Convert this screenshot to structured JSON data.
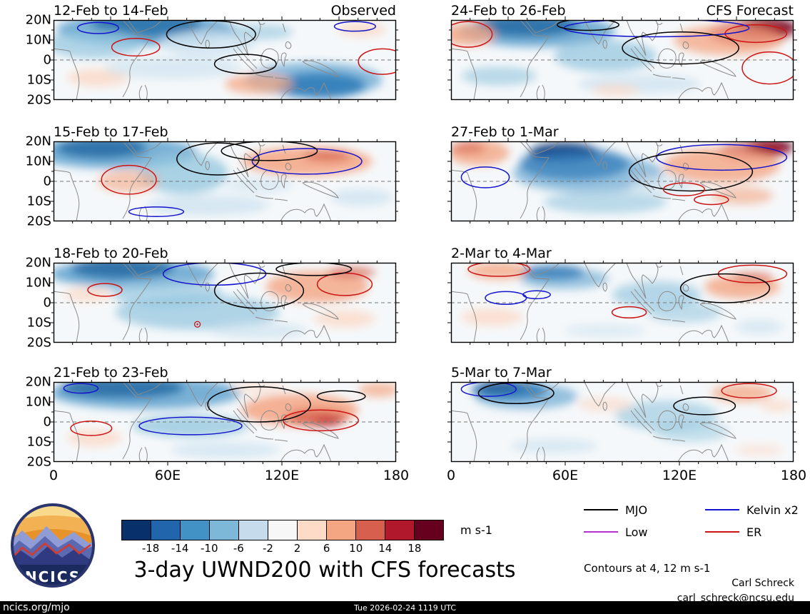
{
  "logo_text": "NCICS",
  "footer": {
    "site": "ncics.org/mjo",
    "timestamp": "Tue 2026-02-24 1119 UTC",
    "credit_name": "Carl Schreck",
    "credit_email": "carl_schreck@ncsu.edu"
  },
  "chart_data": {
    "type": "heatmap",
    "subtype": "filled-contour longitude-latitude map grid, 2 columns (Observed | CFS Forecast) x 4 rows of 3-day means",
    "title": "3-day UWND200 with CFS forecasts",
    "units_label": "m s-1",
    "contour_note": "Contours at 4, 12 m s-1",
    "lon_range_deg": [
      0,
      180
    ],
    "lat_range_deg": [
      -20,
      20
    ],
    "lon_ticks": [
      "0",
      "60E",
      "120E",
      "180"
    ],
    "lat_ticks": [
      "20N",
      "10N",
      "0",
      "10S",
      "20S"
    ],
    "columns": [
      "Observed",
      "CFS Forecast"
    ],
    "colorbar_tick_labels": [
      "-18",
      "-14",
      "-10",
      "-6",
      "-2",
      "2",
      "6",
      "10",
      "14",
      "18"
    ],
    "colorbar_colors": [
      "#08306b",
      "#2166ac",
      "#4292c6",
      "#7db8d8",
      "#c6dcec",
      "#f7f7f7",
      "#fddbc7",
      "#f4a582",
      "#d6604d",
      "#b2182b",
      "#67001f"
    ],
    "legend": [
      {
        "label": "MJO",
        "color": "#000000"
      },
      {
        "label": "Kelvin x2",
        "color": "#1414cc"
      },
      {
        "label": "Low",
        "color": "#b233cc"
      },
      {
        "label": "ER",
        "color": "#cc1414"
      }
    ],
    "palette": {
      "nb": "#08306b",
      "db": "#2166ac",
      "mb": "#4292c6",
      "lb": "#92c5de",
      "vb": "#cfe3f0",
      "lo": "#fbdccb",
      "mo": "#f4a582",
      "dk": "#d6604d",
      "dr": "#b2182b",
      "mr": "#67001f"
    },
    "contour_colors": {
      "mjo": "#000000",
      "kelvin": "#1414cc",
      "er": "#cc1414",
      "low": "#b233cc"
    },
    "panels": [
      {
        "title": "12-Feb to 14-Feb",
        "corner": "Observed",
        "column": "Observed",
        "blobs": [
          [
            27,
            6,
            16,
            14,
            "nb",
            1
          ],
          [
            27,
            12,
            26,
            20,
            "mb",
            0.75
          ],
          [
            12,
            30,
            14,
            18,
            "lb",
            0.7
          ],
          [
            45,
            30,
            14,
            16,
            "vb",
            0.8
          ],
          [
            60,
            15,
            10,
            10,
            "lb",
            0.6
          ],
          [
            78,
            82,
            13,
            16,
            "db",
            0.95
          ],
          [
            76,
            75,
            20,
            22,
            "mb",
            0.6
          ],
          [
            60,
            80,
            10,
            12,
            "mo",
            0.75
          ],
          [
            13,
            72,
            9,
            11,
            "lo",
            0.9
          ],
          [
            90,
            12,
            7,
            9,
            "lo",
            0.9
          ],
          [
            35,
            60,
            20,
            14,
            "vb",
            0.7
          ]
        ],
        "contours": [
          [
            24,
            34,
            7,
            11,
            "er"
          ],
          [
            96,
            52,
            7,
            16,
            "er"
          ],
          [
            88,
            8,
            6,
            6,
            "kelvin"
          ],
          [
            13,
            10,
            6,
            7,
            "kelvin"
          ],
          [
            46,
            18,
            13,
            17,
            "mjo"
          ],
          [
            56,
            55,
            9,
            12,
            "mjo"
          ]
        ]
      },
      {
        "title": "15-Feb to 17-Feb",
        "column": "Observed",
        "blobs": [
          [
            14,
            8,
            13,
            13,
            "nb",
            1
          ],
          [
            18,
            14,
            24,
            20,
            "mb",
            0.7
          ],
          [
            38,
            40,
            13,
            26,
            "lb",
            0.75
          ],
          [
            45,
            80,
            18,
            13,
            "vb",
            0.8
          ],
          [
            74,
            25,
            19,
            18,
            "mo",
            0.85
          ],
          [
            80,
            18,
            7,
            7,
            "dk",
            0.7
          ],
          [
            22,
            50,
            9,
            14,
            "mo",
            0.6
          ],
          [
            90,
            70,
            9,
            11,
            "vb",
            0.8
          ],
          [
            60,
            55,
            10,
            10,
            "vb",
            0.6
          ]
        ],
        "contours": [
          [
            22,
            48,
            8,
            18,
            "er"
          ],
          [
            74,
            25,
            16,
            16,
            "kelvin"
          ],
          [
            30,
            88,
            8,
            6,
            "kelvin"
          ],
          [
            48,
            22,
            12,
            20,
            "mjo"
          ],
          [
            63,
            12,
            14,
            12,
            "mjo"
          ]
        ]
      },
      {
        "title": "18-Feb to 20-Feb",
        "column": "Observed",
        "blobs": [
          [
            20,
            7,
            15,
            13,
            "nb",
            1
          ],
          [
            23,
            14,
            24,
            18,
            "mb",
            0.7
          ],
          [
            42,
            62,
            24,
            22,
            "lb",
            0.7
          ],
          [
            33,
            38,
            16,
            18,
            "lb",
            0.65
          ],
          [
            77,
            30,
            15,
            20,
            "mo",
            0.8
          ],
          [
            87,
            12,
            7,
            7,
            "dk",
            0.7
          ],
          [
            85,
            70,
            9,
            11,
            "lo",
            0.85
          ],
          [
            10,
            40,
            7,
            9,
            "lo",
            0.8
          ],
          [
            60,
            85,
            14,
            10,
            "vb",
            0.7
          ]
        ],
        "contours": [
          [
            47,
            14,
            15,
            14,
            "kelvin"
          ],
          [
            15,
            34,
            5,
            8,
            "er"
          ],
          [
            85,
            27,
            8,
            14,
            "er"
          ],
          [
            60,
            35,
            13,
            22,
            "mjo"
          ],
          [
            76,
            8,
            11,
            8,
            "mjo"
          ]
        ],
        "marker": [
          42,
          77
        ]
      },
      {
        "title": "21-Feb to 23-Feb",
        "column": "Observed",
        "blobs": [
          [
            20,
            7,
            18,
            13,
            "nb",
            1
          ],
          [
            27,
            14,
            28,
            20,
            "mb",
            0.7
          ],
          [
            40,
            55,
            17,
            14,
            "lb",
            0.75
          ],
          [
            72,
            35,
            17,
            20,
            "mo",
            0.85
          ],
          [
            77,
            45,
            9,
            11,
            "dk",
            0.8
          ],
          [
            80,
            50,
            4,
            5,
            "dr",
            0.7
          ],
          [
            50,
            85,
            16,
            10,
            "vb",
            0.75
          ],
          [
            95,
            10,
            6,
            9,
            "mo",
            0.7
          ],
          [
            12,
            70,
            8,
            11,
            "lo",
            0.85
          ],
          [
            60,
            8,
            8,
            8,
            "lo",
            0.6
          ]
        ],
        "contours": [
          [
            40,
            55,
            15,
            11,
            "kelvin"
          ],
          [
            8,
            8,
            5,
            6,
            "kelvin"
          ],
          [
            78,
            48,
            11,
            13,
            "er"
          ],
          [
            11,
            58,
            6,
            9,
            "er"
          ],
          [
            60,
            28,
            15,
            22,
            "mjo"
          ],
          [
            84,
            18,
            7,
            7,
            "mjo"
          ]
        ]
      },
      {
        "title": "24-Feb to 26-Feb",
        "corner": "CFS Forecast",
        "column": "CFS Forecast",
        "blobs": [
          [
            22,
            7,
            15,
            14,
            "nb",
            1
          ],
          [
            25,
            14,
            23,
            20,
            "mb",
            0.7
          ],
          [
            92,
            10,
            9,
            12,
            "mr",
            0.9
          ],
          [
            87,
            16,
            12,
            15,
            "dr",
            0.7
          ],
          [
            81,
            25,
            16,
            19,
            "mo",
            0.75
          ],
          [
            5,
            18,
            8,
            14,
            "mo",
            0.8
          ],
          [
            45,
            45,
            15,
            20,
            "lb",
            0.7
          ],
          [
            55,
            80,
            18,
            12,
            "vb",
            0.8
          ],
          [
            14,
            70,
            11,
            12,
            "lb",
            0.6
          ],
          [
            48,
            88,
            7,
            7,
            "lo",
            0.8
          ]
        ],
        "contours": [
          [
            5,
            18,
            7,
            16,
            "er"
          ],
          [
            89,
            17,
            9,
            11,
            "er"
          ],
          [
            93,
            60,
            8,
            20,
            "er"
          ],
          [
            60,
            10,
            27,
            11,
            "kelvin"
          ],
          [
            67,
            35,
            17,
            20,
            "mjo"
          ],
          [
            40,
            6,
            9,
            7,
            "mjo"
          ]
        ]
      },
      {
        "title": "27-Feb to 1-Mar",
        "column": "CFS Forecast",
        "blobs": [
          [
            8,
            14,
            9,
            16,
            "mo",
            0.8
          ],
          [
            5,
            8,
            5,
            7,
            "dk",
            0.6
          ],
          [
            33,
            14,
            10,
            12,
            "nb",
            0.95
          ],
          [
            36,
            28,
            16,
            20,
            "db",
            0.75
          ],
          [
            40,
            40,
            22,
            24,
            "mb",
            0.55
          ],
          [
            45,
            76,
            18,
            14,
            "lb",
            0.6
          ],
          [
            93,
            7,
            7,
            9,
            "mr",
            0.9
          ],
          [
            88,
            12,
            10,
            11,
            "dr",
            0.7
          ],
          [
            79,
            30,
            17,
            22,
            "mo",
            0.8
          ],
          [
            85,
            68,
            9,
            11,
            "mo",
            0.6
          ],
          [
            62,
            55,
            9,
            11,
            "vb",
            0.7
          ]
        ],
        "contours": [
          [
            10,
            45,
            7,
            13,
            "kelvin"
          ],
          [
            79,
            20,
            19,
            16,
            "kelvin"
          ],
          [
            70,
            38,
            18,
            24,
            "mjo"
          ],
          [
            68,
            60,
            6,
            8,
            "er"
          ],
          [
            76,
            73,
            5,
            6,
            "er"
          ]
        ]
      },
      {
        "title": "2-Mar to 4-Mar",
        "column": "CFS Forecast",
        "blobs": [
          [
            14,
            10,
            9,
            11,
            "mo",
            0.75
          ],
          [
            30,
            12,
            9,
            9,
            "db",
            0.8
          ],
          [
            33,
            20,
            13,
            13,
            "mb",
            0.5
          ],
          [
            60,
            40,
            13,
            17,
            "lb",
            0.65
          ],
          [
            68,
            62,
            11,
            13,
            "lb",
            0.55
          ],
          [
            85,
            30,
            11,
            15,
            "mo",
            0.8
          ],
          [
            88,
            18,
            6,
            6,
            "dk",
            0.6
          ],
          [
            12,
            68,
            9,
            11,
            "lo",
            0.85
          ],
          [
            90,
            80,
            7,
            9,
            "vb",
            0.7
          ],
          [
            45,
            85,
            12,
            8,
            "vb",
            0.6
          ]
        ],
        "contours": [
          [
            14,
            8,
            9,
            9,
            "er"
          ],
          [
            16,
            44,
            6,
            8,
            "kelvin"
          ],
          [
            25,
            40,
            4,
            5,
            "kelvin"
          ],
          [
            88,
            14,
            10,
            11,
            "er"
          ],
          [
            80,
            32,
            13,
            18,
            "mjo"
          ],
          [
            52,
            62,
            5,
            7,
            "er"
          ]
        ]
      },
      {
        "title": "5-Mar to 7-Mar",
        "column": "CFS Forecast",
        "blobs": [
          [
            17,
            10,
            11,
            12,
            "db",
            0.9
          ],
          [
            15,
            7,
            6,
            7,
            "nb",
            0.8
          ],
          [
            22,
            18,
            15,
            16,
            "mb",
            0.55
          ],
          [
            63,
            42,
            15,
            19,
            "lb",
            0.6
          ],
          [
            70,
            62,
            11,
            13,
            "lb",
            0.5
          ],
          [
            85,
            14,
            9,
            11,
            "mo",
            0.75
          ],
          [
            95,
            30,
            5,
            7,
            "lo",
            0.8
          ],
          [
            45,
            28,
            8,
            9,
            "lo",
            0.7
          ],
          [
            30,
            80,
            13,
            9,
            "vb",
            0.7
          ],
          [
            90,
            85,
            7,
            7,
            "lo",
            0.6
          ]
        ],
        "contours": [
          [
            11,
            9,
            8,
            9,
            "kelvin"
          ],
          [
            19,
            14,
            11,
            13,
            "mjo"
          ],
          [
            87,
            11,
            8,
            9,
            "er"
          ],
          [
            74,
            30,
            9,
            11,
            "mjo"
          ]
        ]
      }
    ]
  }
}
